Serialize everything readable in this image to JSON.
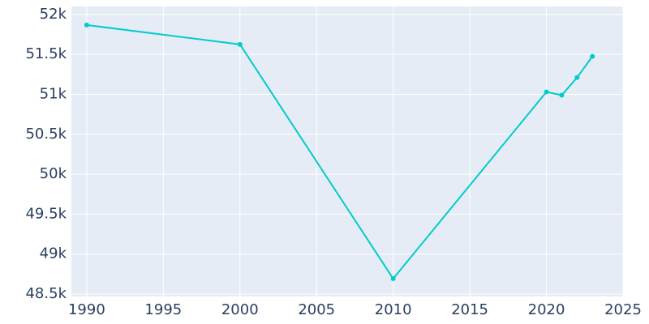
{
  "chart_data": {
    "type": "line",
    "x": [
      1990,
      2000,
      2010,
      2020,
      2021,
      2022,
      2023
    ],
    "series": [
      {
        "color": "#00cccc",
        "values": [
          51868,
          51625,
          48693,
          51030,
          50990,
          51210,
          51475
        ]
      }
    ],
    "xlim": [
      1989,
      2025
    ],
    "xticks": [
      1990,
      1995,
      2000,
      2005,
      2010,
      2015,
      2020,
      2025
    ],
    "ylim": [
      48470,
      52100
    ],
    "yticks": [
      {
        "value": 48500,
        "label": "48.5k"
      },
      {
        "value": 49000,
        "label": "49k"
      },
      {
        "value": 49500,
        "label": "49.5k"
      },
      {
        "value": 50000,
        "label": "50k"
      },
      {
        "value": 50500,
        "label": "50.5k"
      },
      {
        "value": 51000,
        "label": "51k"
      },
      {
        "value": 51500,
        "label": "51.5k"
      },
      {
        "value": 52000,
        "label": "52k"
      }
    ],
    "grid": true
  }
}
